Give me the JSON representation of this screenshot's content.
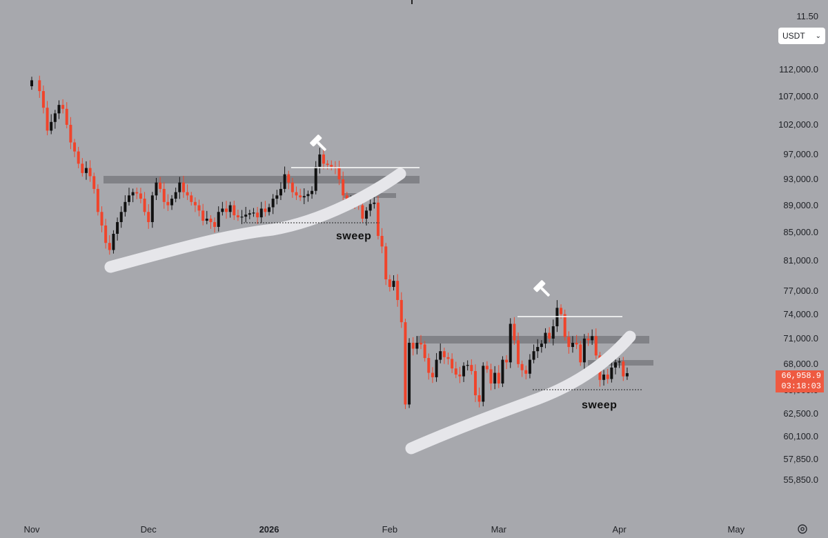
{
  "chart_data": {
    "type": "candlestick",
    "currency": "USDT",
    "y_axis": {
      "scale": "log",
      "ticks": [
        "11.50",
        "112,000.0",
        "107,000.0",
        "102,000.0",
        "97,000.0",
        "93,000.0",
        "89,000.0",
        "85,000.0",
        "81,000.0",
        "77,000.0",
        "74,000.0",
        "71,000.0",
        "68,000.0",
        "65,000.0",
        "62,500.0",
        "60,100.0",
        "57,850.0",
        "55,850.0"
      ]
    },
    "x_axis": {
      "ticks": [
        {
          "label": "Nov",
          "date": "2025-11-01"
        },
        {
          "label": "Dec",
          "date": "2025-12-01"
        },
        {
          "label": "2026",
          "date": "2026-01-01",
          "bold": true
        },
        {
          "label": "Feb",
          "date": "2026-02-01"
        },
        {
          "label": "Mar",
          "date": "2026-03-01"
        },
        {
          "label": "Apr",
          "date": "2026-04-01"
        },
        {
          "label": "May",
          "date": "2026-05-01"
        }
      ]
    },
    "last_price": "66,958.9",
    "countdown": "03:18:03",
    "annotations": [
      "sweep",
      "sweep"
    ],
    "candle_close_series": [
      [
        "2025-11-01",
        110000
      ],
      [
        "2025-11-03",
        108000
      ],
      [
        "2025-11-04",
        105000
      ],
      [
        "2025-11-05",
        101000
      ],
      [
        "2025-11-06",
        102500
      ],
      [
        "2025-11-07",
        104000
      ],
      [
        "2025-11-08",
        105500
      ],
      [
        "2025-11-09",
        104800
      ],
      [
        "2025-11-10",
        102000
      ],
      [
        "2025-11-11",
        99000
      ],
      [
        "2025-11-12",
        97500
      ],
      [
        "2025-11-13",
        95500
      ],
      [
        "2025-11-14",
        94000
      ],
      [
        "2025-11-15",
        94800
      ],
      [
        "2025-11-16",
        93500
      ],
      [
        "2025-11-17",
        91500
      ],
      [
        "2025-11-18",
        88000
      ],
      [
        "2025-11-19",
        86000
      ],
      [
        "2025-11-20",
        83500
      ],
      [
        "2025-11-21",
        82500
      ],
      [
        "2025-11-22",
        84800
      ],
      [
        "2025-11-23",
        86500
      ],
      [
        "2025-11-24",
        88000
      ],
      [
        "2025-11-25",
        89500
      ],
      [
        "2025-11-26",
        90500
      ],
      [
        "2025-11-27",
        91000
      ],
      [
        "2025-11-28",
        90800
      ],
      [
        "2025-11-29",
        90000
      ],
      [
        "2025-11-30",
        88000
      ],
      [
        "2025-12-01",
        86500
      ],
      [
        "2025-12-02",
        90500
      ],
      [
        "2025-12-03",
        92500
      ],
      [
        "2025-12-04",
        91500
      ],
      [
        "2025-12-05",
        89500
      ],
      [
        "2025-12-06",
        89000
      ],
      [
        "2025-12-07",
        90000
      ],
      [
        "2025-12-08",
        91000
      ],
      [
        "2025-12-09",
        92500
      ],
      [
        "2025-12-10",
        91000
      ],
      [
        "2025-12-11",
        90500
      ],
      [
        "2025-12-12",
        89500
      ],
      [
        "2025-12-13",
        89000
      ],
      [
        "2025-12-14",
        88200
      ],
      [
        "2025-12-15",
        86700
      ],
      [
        "2025-12-16",
        87000
      ],
      [
        "2025-12-17",
        86500
      ],
      [
        "2025-12-18",
        85800
      ],
      [
        "2025-12-19",
        88000
      ],
      [
        "2025-12-20",
        88500
      ],
      [
        "2025-12-21",
        88000
      ],
      [
        "2025-12-22",
        89000
      ],
      [
        "2025-12-23",
        87500
      ],
      [
        "2025-12-24",
        87200
      ],
      [
        "2025-12-25",
        87300
      ],
      [
        "2025-12-26",
        87600
      ],
      [
        "2025-12-27",
        87800
      ],
      [
        "2025-12-28",
        87900
      ],
      [
        "2025-12-29",
        87200
      ],
      [
        "2025-12-30",
        88500
      ],
      [
        "2025-12-31",
        88000
      ],
      [
        "2026-01-01",
        88700
      ],
      [
        "2026-01-02",
        90000
      ],
      [
        "2026-01-03",
        90500
      ],
      [
        "2026-01-04",
        91500
      ],
      [
        "2026-01-05",
        93800
      ],
      [
        "2026-01-06",
        92500
      ],
      [
        "2026-01-07",
        91000
      ],
      [
        "2026-01-08",
        90500
      ],
      [
        "2026-01-09",
        90200
      ],
      [
        "2026-01-10",
        90400
      ],
      [
        "2026-01-11",
        90700
      ],
      [
        "2026-01-12",
        91200
      ],
      [
        "2026-01-13",
        95000
      ],
      [
        "2026-01-14",
        97000
      ],
      [
        "2026-01-15",
        95500
      ],
      [
        "2026-01-16",
        95300
      ],
      [
        "2026-01-17",
        95000
      ],
      [
        "2026-01-18",
        94900
      ],
      [
        "2026-01-19",
        93000
      ],
      [
        "2026-01-20",
        90500
      ],
      [
        "2026-01-21",
        89500
      ],
      [
        "2026-01-22",
        89800
      ],
      [
        "2026-01-23",
        89300
      ],
      [
        "2026-01-24",
        89000
      ],
      [
        "2026-01-25",
        87000
      ],
      [
        "2026-01-26",
        88200
      ],
      [
        "2026-01-27",
        89200
      ],
      [
        "2026-01-28",
        89400
      ],
      [
        "2026-01-29",
        84500
      ],
      [
        "2026-01-30",
        83000
      ],
      [
        "2026-01-31",
        78500
      ],
      [
        "2026-02-01",
        77500
      ],
      [
        "2026-02-02",
        78300
      ],
      [
        "2026-02-03",
        75800
      ],
      [
        "2026-02-04",
        73000
      ],
      [
        "2026-02-05",
        63500
      ],
      [
        "2026-02-06",
        70500
      ],
      [
        "2026-02-07",
        69800
      ],
      [
        "2026-02-08",
        70500
      ],
      [
        "2026-02-09",
        70300
      ],
      [
        "2026-02-10",
        68700
      ],
      [
        "2026-02-11",
        67000
      ],
      [
        "2026-02-12",
        66500
      ],
      [
        "2026-02-13",
        68500
      ],
      [
        "2026-02-14",
        69500
      ],
      [
        "2026-02-15",
        68800
      ],
      [
        "2026-02-16",
        68600
      ],
      [
        "2026-02-17",
        67500
      ],
      [
        "2026-02-18",
        66800
      ],
      [
        "2026-02-19",
        66600
      ],
      [
        "2026-02-20",
        67800
      ],
      [
        "2026-02-21",
        67900
      ],
      [
        "2026-02-22",
        67200
      ],
      [
        "2026-02-23",
        64500
      ],
      [
        "2026-02-24",
        63800
      ],
      [
        "2026-02-25",
        67800
      ],
      [
        "2026-02-26",
        67400
      ],
      [
        "2026-02-27",
        65800
      ],
      [
        "2026-02-28",
        67000
      ],
      [
        "2026-03-01",
        65800
      ],
      [
        "2026-03-02",
        68500
      ],
      [
        "2026-03-03",
        68200
      ],
      [
        "2026-03-04",
        72800
      ],
      [
        "2026-03-05",
        70800
      ],
      [
        "2026-03-06",
        68000
      ],
      [
        "2026-03-07",
        67300
      ],
      [
        "2026-03-08",
        66900
      ],
      [
        "2026-03-09",
        68500
      ],
      [
        "2026-03-10",
        69500
      ],
      [
        "2026-03-11",
        70000
      ],
      [
        "2026-03-12",
        70400
      ],
      [
        "2026-03-13",
        71700
      ],
      [
        "2026-03-14",
        71000
      ],
      [
        "2026-03-15",
        72500
      ],
      [
        "2026-03-16",
        74800
      ],
      [
        "2026-03-17",
        74000
      ],
      [
        "2026-03-18",
        71200
      ],
      [
        "2026-03-19",
        70000
      ],
      [
        "2026-03-20",
        70500
      ],
      [
        "2026-03-21",
        70300
      ],
      [
        "2026-03-22",
        68200
      ],
      [
        "2026-03-23",
        71000
      ],
      [
        "2026-03-24",
        70800
      ],
      [
        "2026-03-25",
        71300
      ],
      [
        "2026-03-26",
        69000
      ],
      [
        "2026-03-27",
        66200
      ],
      [
        "2026-03-28",
        66800
      ],
      [
        "2026-03-29",
        66300
      ],
      [
        "2026-03-30",
        67600
      ],
      [
        "2026-03-31",
        68200
      ],
      [
        "2026-04-01",
        68300
      ],
      [
        "2026-04-02",
        66600
      ],
      [
        "2026-04-03",
        66959
      ]
    ]
  }
}
